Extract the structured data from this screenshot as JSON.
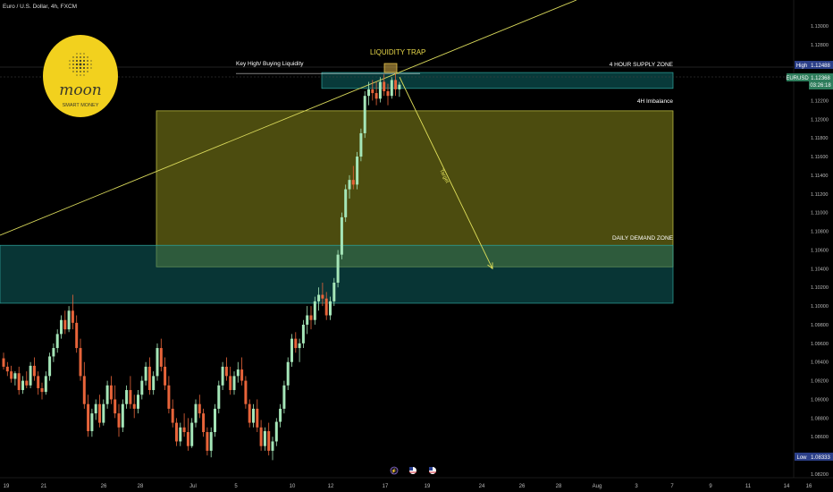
{
  "header": {
    "title": "Euro / U.S. Dollar, 4h, FXCM"
  },
  "logo": {
    "brand": "moon",
    "tagline": "SMART MONEY"
  },
  "colors": {
    "bull": "#a5e6b8",
    "bear": "#e8643a",
    "zone_teal": "#0f6a6a",
    "zone_yellow": "#8a8a1c",
    "line_yellow": "#d7d75a",
    "arrow": "#e0e05a",
    "tag_blue": "#2b3f88",
    "tag_green": "#2e7d5c"
  },
  "annotations": {
    "liquidity_trap": "LIQUIDITY TRAP",
    "key_high": "Key High/ Buying Liquidity",
    "supply_zone": "4 HOUR SUPPLY ZONE",
    "imbalance": "4H Imbalance",
    "demand_zone": "DAILY DEMAND ZONE",
    "target": "Target"
  },
  "price_tags": {
    "high_label": "High",
    "high_value": "1.12488",
    "symbol": "EURUSD",
    "last_value": "1.12368",
    "countdown": "03:26:18",
    "low_label": "Low",
    "low_value": "1.08333"
  },
  "chart_data": {
    "type": "candlestick",
    "symbol": "EURUSD",
    "timeframe": "4h",
    "ylim": [
      1.082,
      1.132
    ],
    "y_ticks": [
      "1.13000",
      "1.12800",
      "1.12600",
      "1.12400",
      "1.12200",
      "1.12000",
      "1.11800",
      "1.11600",
      "1.11400",
      "1.11200",
      "1.11000",
      "1.10800",
      "1.10600",
      "1.10400",
      "1.10200",
      "1.10000",
      "1.09800",
      "1.09600",
      "1.09400",
      "1.09200",
      "1.09000",
      "1.08800",
      "1.08600",
      "1.08400",
      "1.08200"
    ],
    "x_ticks": [
      "19",
      "21",
      "26",
      "28",
      "Jul",
      "5",
      "10",
      "12",
      "17",
      "19",
      "24",
      "26",
      "28",
      "Aug",
      "3",
      "7",
      "9",
      "11",
      "14",
      "16"
    ],
    "zones": [
      {
        "name": "4 HOUR SUPPLY ZONE",
        "low": 1.1233,
        "high": 1.125
      },
      {
        "name": "4H Imbalance",
        "low": 1.1042,
        "high": 1.1209
      },
      {
        "name": "DAILY DEMAND ZONE",
        "low": 1.1003,
        "high": 1.1065
      }
    ],
    "levels": [
      {
        "name": "Key High/ Buying Liquidity",
        "price": 1.1249
      }
    ],
    "candles": [
      [
        1.0944,
        1.095,
        1.0932,
        1.0935
      ],
      [
        1.0935,
        1.094,
        1.0925,
        1.093
      ],
      [
        1.093,
        1.0936,
        1.0918,
        1.0922
      ],
      [
        1.0922,
        1.093,
        1.0915,
        1.0928
      ],
      [
        1.0928,
        1.0935,
        1.0905,
        1.091
      ],
      [
        1.091,
        1.0925,
        1.0906,
        1.092
      ],
      [
        1.092,
        1.093,
        1.0912,
        1.0915
      ],
      [
        1.0915,
        1.094,
        1.0912,
        1.0936
      ],
      [
        1.0936,
        1.0945,
        1.092,
        1.0925
      ],
      [
        1.0925,
        1.093,
        1.0905,
        1.0912
      ],
      [
        1.0912,
        1.0918,
        1.09,
        1.0908
      ],
      [
        1.0908,
        1.093,
        1.0905,
        1.0925
      ],
      [
        1.0925,
        1.095,
        1.092,
        1.0946
      ],
      [
        1.0946,
        1.096,
        1.094,
        1.0955
      ],
      [
        1.0955,
        1.0975,
        1.095,
        1.097
      ],
      [
        1.097,
        1.099,
        1.0965,
        1.0985
      ],
      [
        1.0985,
        1.0995,
        1.097,
        1.0975
      ],
      [
        1.0975,
        1.1,
        1.0972,
        1.0995
      ],
      [
        1.0995,
        1.1012,
        1.0975,
        1.0982
      ],
      [
        1.0982,
        1.099,
        1.095,
        1.0955
      ],
      [
        1.0955,
        1.0965,
        1.092,
        1.0925
      ],
      [
        1.0925,
        1.094,
        1.089,
        1.0895
      ],
      [
        1.0895,
        1.0905,
        1.086,
        1.0866
      ],
      [
        1.0866,
        1.089,
        1.086,
        1.0885
      ],
      [
        1.0885,
        1.09,
        1.0878,
        1.0895
      ],
      [
        1.0895,
        1.0905,
        1.087,
        1.0875
      ],
      [
        1.0875,
        1.09,
        1.0872,
        1.0895
      ],
      [
        1.0895,
        1.092,
        1.089,
        1.0915
      ],
      [
        1.0915,
        1.0925,
        1.0895,
        1.09
      ],
      [
        1.09,
        1.0915,
        1.088,
        1.0885
      ],
      [
        1.0885,
        1.0895,
        1.086,
        1.087
      ],
      [
        1.087,
        1.09,
        1.0865,
        1.0895
      ],
      [
        1.0895,
        1.0915,
        1.089,
        1.091
      ],
      [
        1.091,
        1.0925,
        1.089,
        1.0895
      ],
      [
        1.0895,
        1.0905,
        1.088,
        1.089
      ],
      [
        1.089,
        1.091,
        1.0885,
        1.0905
      ],
      [
        1.0905,
        1.0925,
        1.09,
        1.092
      ],
      [
        1.092,
        1.094,
        1.0915,
        1.0935
      ],
      [
        1.0935,
        1.0945,
        1.0905,
        1.091
      ],
      [
        1.091,
        1.093,
        1.0905,
        1.0925
      ],
      [
        1.0925,
        1.096,
        1.092,
        1.0955
      ],
      [
        1.0955,
        1.0965,
        1.093,
        1.0935
      ],
      [
        1.0935,
        1.0945,
        1.091,
        1.0915
      ],
      [
        1.0915,
        1.0925,
        1.0885,
        1.089
      ],
      [
        1.089,
        1.09,
        1.087,
        1.0875
      ],
      [
        1.0875,
        1.088,
        1.085,
        1.0855
      ],
      [
        1.0855,
        1.0875,
        1.085,
        1.087
      ],
      [
        1.087,
        1.0885,
        1.086,
        1.0865
      ],
      [
        1.0865,
        1.088,
        1.0845,
        1.085
      ],
      [
        1.085,
        1.088,
        1.0848,
        1.0875
      ],
      [
        1.0875,
        1.09,
        1.087,
        1.0895
      ],
      [
        1.0895,
        1.0905,
        1.088,
        1.0885
      ],
      [
        1.0885,
        1.089,
        1.086,
        1.0865
      ],
      [
        1.0865,
        1.087,
        1.084,
        1.0845
      ],
      [
        1.0845,
        1.087,
        1.0838,
        1.0865
      ],
      [
        1.0865,
        1.0895,
        1.086,
        1.089
      ],
      [
        1.089,
        1.092,
        1.0885,
        1.0915
      ],
      [
        1.0915,
        1.094,
        1.091,
        1.0935
      ],
      [
        1.0935,
        1.0945,
        1.092,
        1.0925
      ],
      [
        1.0925,
        1.0935,
        1.0905,
        1.091
      ],
      [
        1.091,
        1.093,
        1.0905,
        1.0925
      ],
      [
        1.0925,
        1.094,
        1.0918,
        1.0932
      ],
      [
        1.0932,
        1.0945,
        1.0915,
        1.092
      ],
      [
        1.092,
        1.0925,
        1.089,
        1.0895
      ],
      [
        1.0895,
        1.09,
        1.087,
        1.0875
      ],
      [
        1.0875,
        1.0895,
        1.087,
        1.089
      ],
      [
        1.089,
        1.09,
        1.0865,
        1.087
      ],
      [
        1.087,
        1.0878,
        1.0845,
        1.085
      ],
      [
        1.085,
        1.087,
        1.0845,
        1.0866
      ],
      [
        1.0866,
        1.0875,
        1.084,
        1.0845
      ],
      [
        1.0845,
        1.086,
        1.0835,
        1.0855
      ],
      [
        1.0855,
        1.088,
        1.085,
        1.0876
      ],
      [
        1.0876,
        1.0895,
        1.087,
        1.089
      ],
      [
        1.089,
        1.092,
        1.0885,
        1.0915
      ],
      [
        1.0915,
        1.0945,
        1.091,
        1.094
      ],
      [
        1.094,
        1.097,
        1.0935,
        1.0965
      ],
      [
        1.0965,
        1.0972,
        1.095,
        1.0955
      ],
      [
        1.0955,
        1.0965,
        1.094,
        1.096
      ],
      [
        1.096,
        1.0985,
        1.0955,
        1.098
      ],
      [
        1.098,
        1.1,
        1.097,
        1.099
      ],
      [
        1.099,
        1.1,
        1.0975,
        1.0985
      ],
      [
        1.0985,
        1.101,
        1.098,
        1.1005
      ],
      [
        1.1005,
        1.102,
        1.0995,
        1.1012
      ],
      [
        1.1012,
        1.1025,
        1.1,
        1.1008
      ],
      [
        1.1008,
        1.1015,
        1.0985,
        1.099
      ],
      [
        1.099,
        1.101,
        1.0985,
        1.1005
      ],
      [
        1.1005,
        1.103,
        1.1,
        1.1025
      ],
      [
        1.1025,
        1.106,
        1.102,
        1.1055
      ],
      [
        1.1055,
        1.11,
        1.105,
        1.1095
      ],
      [
        1.1095,
        1.113,
        1.109,
        1.1125
      ],
      [
        1.1125,
        1.114,
        1.1115,
        1.1135
      ],
      [
        1.1135,
        1.115,
        1.1125,
        1.113
      ],
      [
        1.113,
        1.1165,
        1.1125,
        1.116
      ],
      [
        1.116,
        1.119,
        1.1155,
        1.1185
      ],
      [
        1.1185,
        1.123,
        1.118,
        1.1225
      ],
      [
        1.1225,
        1.124,
        1.1215,
        1.1232
      ],
      [
        1.1232,
        1.1242,
        1.122,
        1.1228
      ],
      [
        1.1228,
        1.124,
        1.1215,
        1.1222
      ],
      [
        1.1222,
        1.1245,
        1.1218,
        1.124
      ],
      [
        1.124,
        1.1248,
        1.1225,
        1.123
      ],
      [
        1.123,
        1.1238,
        1.1215,
        1.1225
      ],
      [
        1.1225,
        1.1245,
        1.1222,
        1.1242
      ],
      [
        1.1242,
        1.1249,
        1.1225,
        1.1232
      ],
      [
        1.1232,
        1.124,
        1.1224,
        1.1237
      ]
    ],
    "projection": {
      "label": "Target",
      "from": {
        "index": 104,
        "price": 1.1249
      },
      "to": {
        "index": 140,
        "price": 1.104
      }
    }
  }
}
